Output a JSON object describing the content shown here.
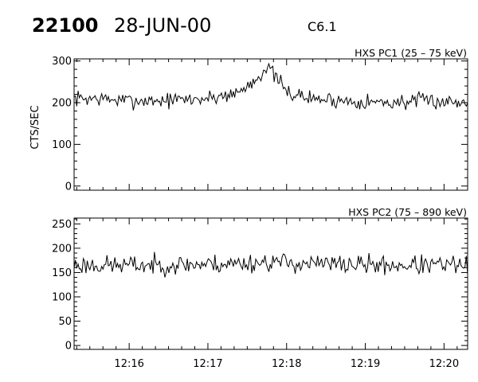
{
  "header": {
    "event_id": "22100",
    "date": "28-JUN-00",
    "flare_class": "C6.1"
  },
  "chart_data": [
    {
      "type": "line",
      "title": "HXS PC1 (25 – 75 keV)",
      "ylabel": "CTS/SEC",
      "xlabel": "",
      "x_unit": "minutes past 12:00",
      "xlim": [
        15.3,
        20.3
      ],
      "ylim": [
        -10,
        305
      ],
      "yticks": [
        0,
        100,
        200,
        300
      ],
      "xticks": [
        16,
        17,
        18,
        19,
        20
      ],
      "xtick_labels": [
        "12:16",
        "12:17",
        "12:18",
        "12:19",
        "12:20"
      ],
      "noise": 16,
      "seed": 7,
      "n_points": 300,
      "baseline_profile": [
        [
          15.3,
          210
        ],
        [
          15.6,
          210
        ],
        [
          15.9,
          205
        ],
        [
          16.4,
          205
        ],
        [
          17.0,
          210
        ],
        [
          17.4,
          225
        ],
        [
          17.6,
          255
        ],
        [
          17.75,
          285
        ],
        [
          17.85,
          265
        ],
        [
          18.0,
          225
        ],
        [
          18.3,
          210
        ],
        [
          18.7,
          205
        ],
        [
          19.3,
          200
        ],
        [
          19.8,
          205
        ],
        [
          20.3,
          200
        ]
      ],
      "grid": false,
      "legend": "none"
    },
    {
      "type": "line",
      "title": "HXS PC2 (75 – 890 keV)",
      "ylabel": "",
      "xlabel": "",
      "x_unit": "minutes past 12:00",
      "xlim": [
        15.3,
        20.3
      ],
      "ylim": [
        -8,
        262
      ],
      "yticks": [
        0,
        50,
        100,
        150,
        200,
        250
      ],
      "xticks": [
        16,
        17,
        18,
        19,
        20
      ],
      "xtick_labels": [
        "12:16",
        "12:17",
        "12:18",
        "12:19",
        "12:20"
      ],
      "noise": 17,
      "seed": 23,
      "n_points": 300,
      "baseline_profile": [
        [
          15.3,
          165
        ],
        [
          16.3,
          165
        ],
        [
          17.3,
          168
        ],
        [
          17.8,
          172
        ],
        [
          18.3,
          168
        ],
        [
          19.3,
          165
        ],
        [
          20.3,
          165
        ]
      ],
      "grid": false,
      "legend": "none"
    }
  ]
}
